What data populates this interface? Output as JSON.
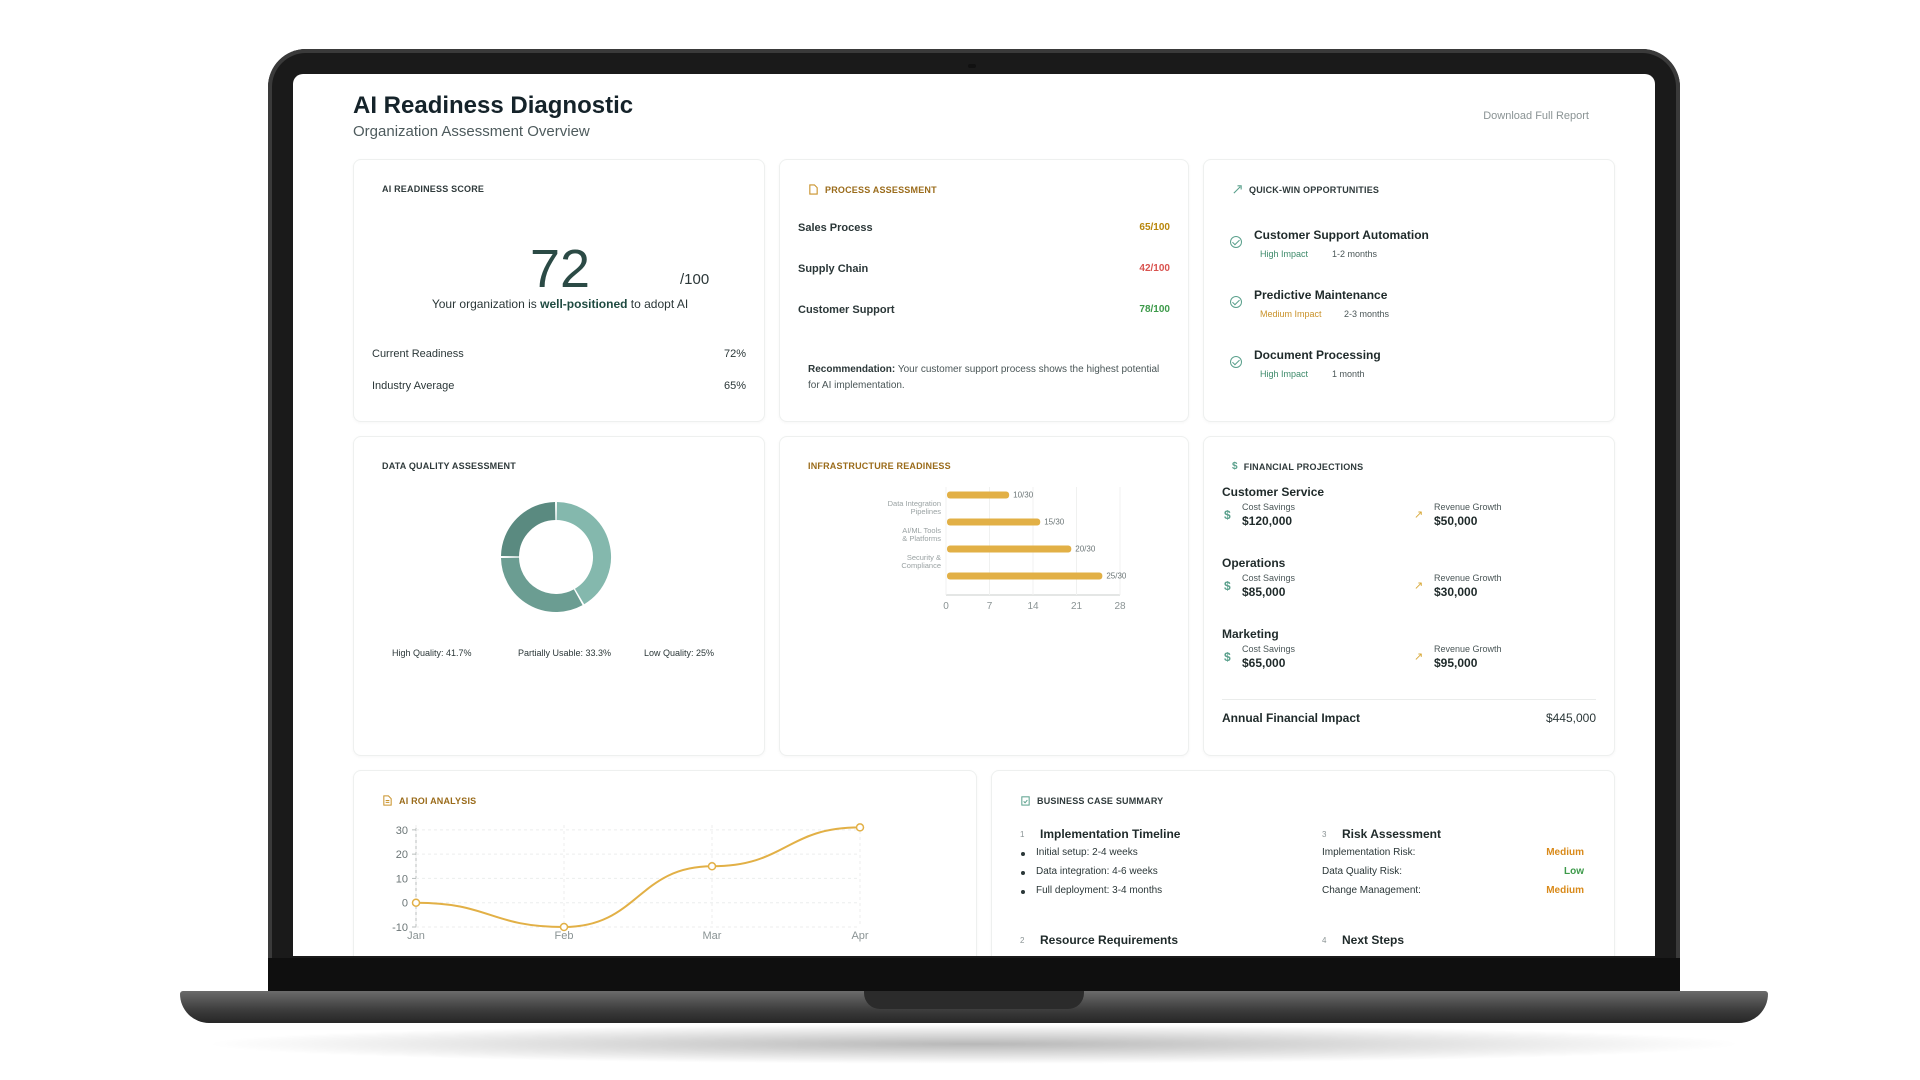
{
  "header": {
    "title": "AI Readiness Diagnostic",
    "subtitle": "Organization Assessment Overview",
    "download_label": "Download Full Report"
  },
  "readiness": {
    "label": "AI READINESS SCORE",
    "score": "72",
    "score_max": "/100",
    "desc_pre": "Your organization is ",
    "desc_bold": "well-positioned",
    "desc_post": " to adopt AI",
    "rows": [
      {
        "label": "Current Readiness",
        "value": "72%"
      },
      {
        "label": "Industry Average",
        "value": "65%"
      }
    ]
  },
  "process": {
    "label": "PROCESS ASSESSMENT",
    "items": [
      {
        "name": "Sales Process",
        "value": "65/100",
        "color": "#b8860b"
      },
      {
        "name": "Supply Chain",
        "value": "42/100",
        "color": "#d9534f"
      },
      {
        "name": "Customer Support",
        "value": "78/100",
        "color": "#3d9a4a"
      }
    ],
    "rec_bold": "Recommendation:",
    "rec_text": " Your customer support process shows the highest potential for AI implementation."
  },
  "quickwins": {
    "label": "QUICK-WIN OPPORTUNITIES",
    "items": [
      {
        "title": "Customer Support Automation",
        "impact": "High Impact",
        "impact_color": "#3d8a6a",
        "time": "1-2 months"
      },
      {
        "title": "Predictive Maintenance",
        "impact": "Medium Impact",
        "impact_color": "#c9922a",
        "time": "2-3 months"
      },
      {
        "title": "Document Processing",
        "impact": "High Impact",
        "impact_color": "#3d8a6a",
        "time": "1 month"
      }
    ]
  },
  "data_quality": {
    "label": "DATA QUALITY ASSESSMENT",
    "legend": [
      "High Quality: 41.7%",
      "Partially Usable: 33.3%",
      "Low Quality: 25%"
    ],
    "colors": [
      "#84b8ad",
      "#6b9d92",
      "#5a8a80"
    ]
  },
  "infrastructure": {
    "label": "INFRASTRUCTURE READINESS"
  },
  "financial": {
    "label": "FINANCIAL PROJECTIONS",
    "sections": [
      {
        "name": "Customer Service",
        "cost_label": "Cost Savings",
        "cost": "$120,000",
        "rev_label": "Revenue Growth",
        "rev": "$50,000"
      },
      {
        "name": "Operations",
        "cost_label": "Cost Savings",
        "cost": "$85,000",
        "rev_label": "Revenue Growth",
        "rev": "$30,000"
      },
      {
        "name": "Marketing",
        "cost_label": "Cost Savings",
        "cost": "$65,000",
        "rev_label": "Revenue Growth",
        "rev": "$95,000"
      }
    ],
    "total_label": "Annual Financial Impact",
    "total_value": "$445,000"
  },
  "roi": {
    "label": "AI ROI ANALYSIS"
  },
  "business_case": {
    "label": "BUSINESS CASE SUMMARY",
    "timeline": {
      "num": "1",
      "title": "Implementation Timeline",
      "bullets": [
        "Initial setup: 2-4 weeks",
        "Data integration: 4-6 weeks",
        "Full deployment: 3-4 months"
      ]
    },
    "risk": {
      "num": "3",
      "title": "Risk Assessment",
      "rows": [
        {
          "label": "Implementation Risk:",
          "value": "Medium",
          "color": "#d98a1a"
        },
        {
          "label": "Data Quality Risk:",
          "value": "Low",
          "color": "#3d9a4a"
        },
        {
          "label": "Change Management:",
          "value": "Medium",
          "color": "#d98a1a"
        }
      ]
    },
    "resources": {
      "num": "2",
      "title": "Resource Requirements"
    },
    "next": {
      "num": "4",
      "title": "Next Steps"
    }
  },
  "chart_data": [
    {
      "type": "pie",
      "categories": [
        "High Quality",
        "Partially Usable",
        "Low Quality"
      ],
      "values": [
        41.7,
        33.3,
        25
      ]
    },
    {
      "type": "bar",
      "orientation": "horizontal",
      "categories": [
        "Data Integration Pipelines",
        "AI/ML Tools & Platforms",
        "Security & Compliance",
        ""
      ],
      "values": [
        10,
        15,
        20,
        25
      ],
      "data_labels": [
        "10/30",
        "15/30",
        "20/30",
        "25/30"
      ],
      "xlim": [
        0,
        28
      ],
      "x_ticks": [
        "0",
        "7",
        "14",
        "21",
        "28"
      ],
      "bar_color": "#e2b046"
    },
    {
      "type": "line",
      "categories": [
        "Jan",
        "Feb",
        "Mar",
        "Apr"
      ],
      "values": [
        0,
        -10,
        15,
        31
      ],
      "y_ticks": [
        "30",
        "20",
        "10",
        "0",
        "-10"
      ],
      "ylim": [
        -10,
        32
      ],
      "line_color": "#e2b046"
    }
  ]
}
